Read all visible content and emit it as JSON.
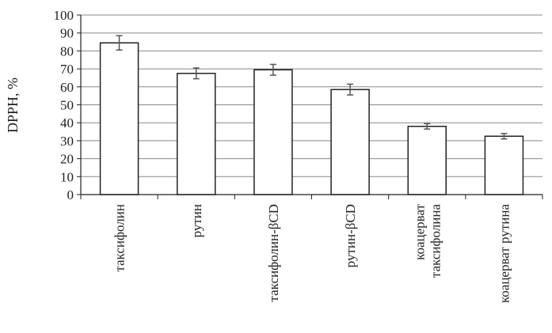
{
  "chart_data": {
    "type": "bar",
    "title": "",
    "xlabel": "",
    "ylabel": "DPPH, %",
    "ylim": [
      0,
      100
    ],
    "yticks": [
      0,
      10,
      20,
      30,
      40,
      50,
      60,
      70,
      80,
      90,
      100
    ],
    "grid": true,
    "categories": [
      [
        "таксифолин"
      ],
      [
        "рутин"
      ],
      [
        "таксифолин-βCD"
      ],
      [
        "рутин-βCD"
      ],
      [
        "коацерват",
        "таксифолина"
      ],
      [
        "коацерват рутина"
      ]
    ],
    "values": [
      84.5,
      67.5,
      69.5,
      58.5,
      38,
      32.5
    ],
    "errors": [
      4,
      3,
      3,
      3,
      1.5,
      1.5
    ],
    "colors": {
      "bar_fill": "#ffffff",
      "bar_stroke": "#222222",
      "grid": "#888888",
      "error_bar": "#555555"
    }
  }
}
